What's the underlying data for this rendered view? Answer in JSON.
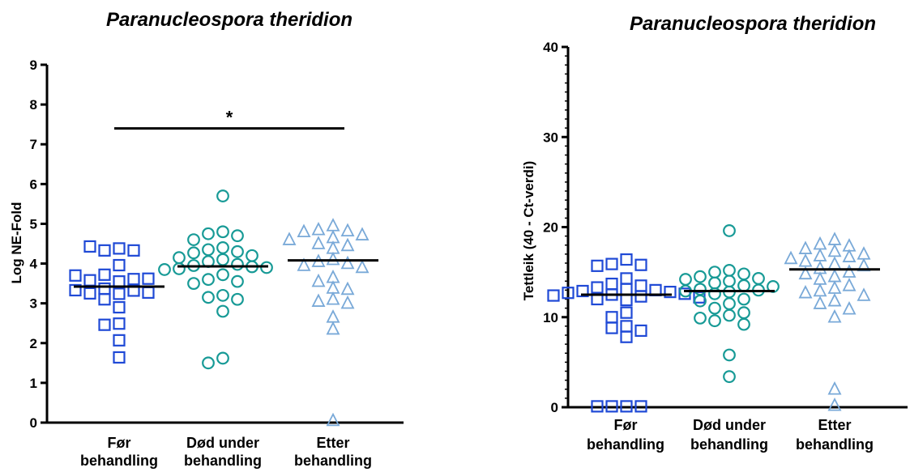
{
  "chart_data": [
    {
      "type": "scatter",
      "title": "Paranucleospora theridion",
      "ylabel": "Log NE-Fold",
      "xlabel": "",
      "ylim": [
        0,
        9
      ],
      "yticks": [
        "0",
        "1",
        "2",
        "3",
        "4",
        "5",
        "6",
        "7",
        "8",
        "9"
      ],
      "categories": [
        [
          "Før",
          "behandling"
        ],
        [
          "Død under",
          "behandling"
        ],
        [
          "Etter",
          "behandling"
        ]
      ],
      "grid": false,
      "series": [
        {
          "marker": "square",
          "color": "#1f49d6",
          "median": 3.42,
          "values": [
            4.38,
            4.33,
            4.33,
            4.43,
            3.96,
            3.72,
            3.55,
            3.61,
            3.58,
            3.62,
            3.7,
            3.37,
            3.32,
            3.24,
            3.25,
            3.27,
            3.33,
            3.1,
            2.9,
            2.49,
            2.46,
            2.07,
            1.64
          ]
        },
        {
          "marker": "circle",
          "color": "#179a96",
          "median": 3.93,
          "values": [
            5.7,
            4.8,
            4.75,
            4.7,
            4.6,
            4.4,
            4.35,
            4.3,
            4.27,
            4.2,
            4.15,
            4.1,
            4.05,
            3.98,
            3.95,
            3.92,
            3.9,
            3.87,
            3.85,
            3.72,
            3.6,
            3.55,
            3.5,
            3.2,
            3.15,
            3.1,
            2.8,
            1.62,
            1.5
          ]
        },
        {
          "marker": "triangle",
          "color": "#79a9d8",
          "median": 4.08,
          "values": [
            4.95,
            4.85,
            4.82,
            4.8,
            4.72,
            4.65,
            4.6,
            4.5,
            4.45,
            4.38,
            4.1,
            4.05,
            4.0,
            3.95,
            3.9,
            3.65,
            3.55,
            3.38,
            3.35,
            3.1,
            3.05,
            3.0,
            2.65,
            2.35,
            0.05
          ]
        }
      ],
      "annotations": [
        {
          "text": "*",
          "from_category": 0,
          "to_category": 2,
          "y": 7.4
        }
      ]
    },
    {
      "type": "scatter",
      "title": "Paranucleospora theridion",
      "ylabel": "Tettleik (40 - Ct-verdi)",
      "xlabel": "",
      "ylim": [
        0,
        40
      ],
      "yticks": [
        "0",
        "10",
        "20",
        "30",
        "40"
      ],
      "minor_tick_step": 1,
      "categories": [
        [
          "Før",
          "behandling"
        ],
        [
          "Død under",
          "behandling"
        ],
        [
          "Etter",
          "behandling"
        ]
      ],
      "grid": false,
      "series": [
        {
          "marker": "square",
          "color": "#1f49d6",
          "median": 12.5,
          "values": [
            16.4,
            15.9,
            15.8,
            15.7,
            14.3,
            13.7,
            13.5,
            13.3,
            13.1,
            13.0,
            12.9,
            12.8,
            12.7,
            12.6,
            12.5,
            12.4,
            12.3,
            12.2,
            12.0,
            11.9,
            10.5,
            10.0,
            9.0,
            8.8,
            8.5,
            7.8,
            0.1,
            0.1,
            0.1,
            0.1
          ]
        },
        {
          "marker": "circle",
          "color": "#179a96",
          "median": 12.9,
          "values": [
            19.6,
            15.2,
            15.0,
            14.8,
            14.5,
            14.3,
            14.2,
            14.0,
            13.8,
            13.5,
            13.4,
            13.1,
            13.0,
            12.9,
            12.8,
            12.6,
            12.0,
            11.8,
            11.5,
            11.0,
            10.5,
            10.2,
            9.9,
            9.6,
            9.2,
            5.8,
            3.4
          ]
        },
        {
          "marker": "triangle",
          "color": "#79a9d8",
          "median": 15.3,
          "values": [
            18.6,
            18.1,
            17.9,
            17.6,
            17.3,
            17.0,
            16.8,
            16.7,
            16.5,
            16.2,
            15.9,
            15.7,
            15.4,
            15.0,
            14.8,
            14.5,
            14.2,
            13.5,
            13.2,
            12.9,
            12.7,
            12.4,
            11.8,
            11.5,
            10.9,
            10.0,
            2.0,
            0.2
          ]
        }
      ]
    }
  ]
}
